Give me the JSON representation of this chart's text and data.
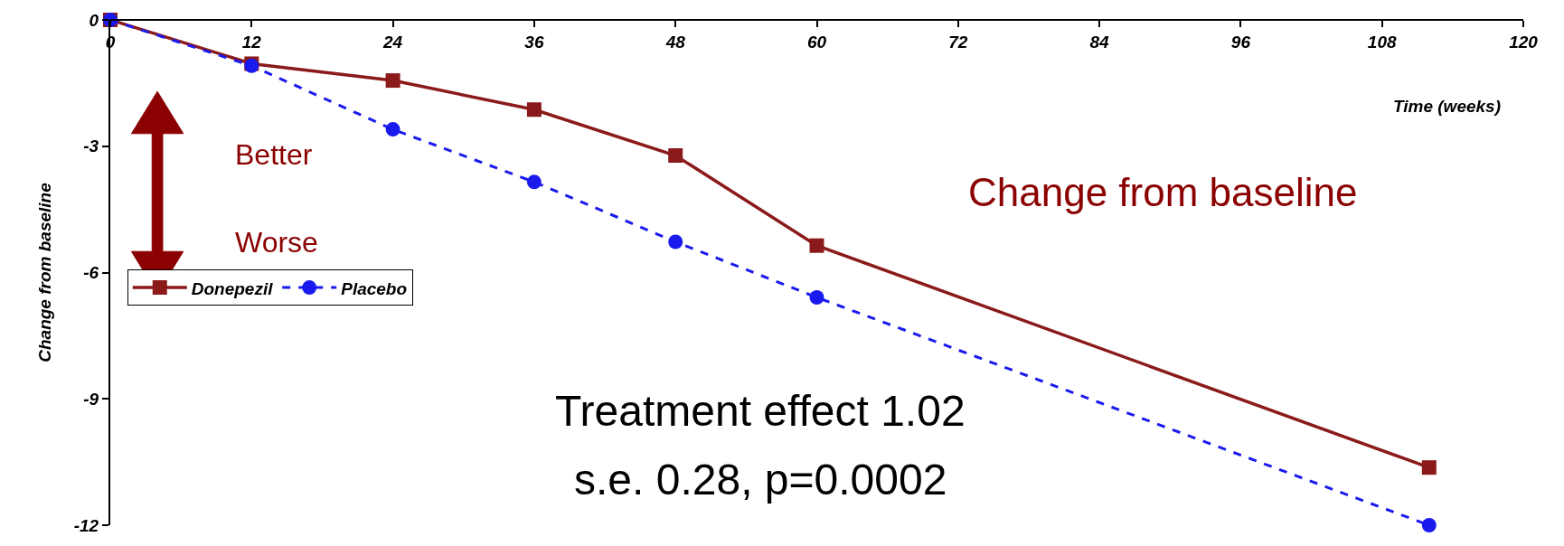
{
  "chart_data": {
    "type": "line",
    "xlabel": "Time (weeks)",
    "ylabel": "Change from baseline",
    "x": [
      0,
      12,
      24,
      36,
      48,
      60,
      112
    ],
    "series": [
      {
        "name": "Donepezil",
        "color": "#8b1a1a",
        "marker": "square",
        "line_style": "solid",
        "values": [
          0,
          -1.04,
          -1.44,
          -2.13,
          -3.22,
          -5.36,
          -10.63
        ]
      },
      {
        "name": "Placebo",
        "color": "#1a1aee",
        "marker": "circle",
        "line_style": "dashed",
        "values": [
          0,
          -1.09,
          -2.6,
          -3.85,
          -5.27,
          -6.59,
          -12
        ]
      }
    ],
    "xlim": [
      0,
      120
    ],
    "xticks": [
      0,
      12,
      24,
      36,
      48,
      60,
      72,
      84,
      96,
      108,
      120
    ],
    "ylim": [
      -12,
      0
    ],
    "yticks": [
      0,
      -3,
      -6,
      -9,
      -12
    ],
    "legend": "left",
    "annotations": [
      "Better",
      "Worse",
      "Change from baseline",
      "Treatment effect 1.02",
      "s.e. 0.28, p=0.0002"
    ]
  }
}
